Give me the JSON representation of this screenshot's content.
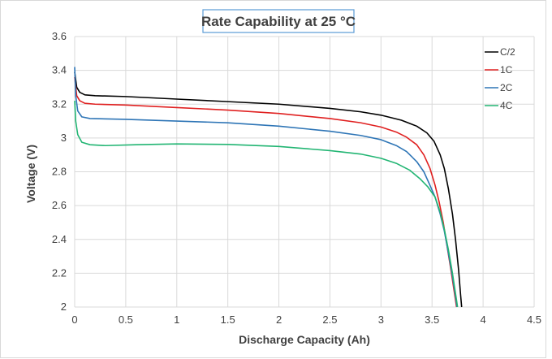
{
  "chart_data": {
    "type": "line",
    "title": "Rate Capability at 25 °C",
    "xlabel": "Discharge Capacity (Ah)",
    "ylabel": "Voltage (V)",
    "xlim": [
      0,
      4.5
    ],
    "ylim": [
      2,
      3.6
    ],
    "xticks": [
      0,
      0.5,
      1,
      1.5,
      2,
      2.5,
      3,
      3.5,
      4,
      4.5
    ],
    "xtick_labels": [
      "0",
      "0.5",
      "1",
      "1.5",
      "2",
      "2.5",
      "3",
      "3.5",
      "4",
      "4.5"
    ],
    "yticks": [
      2,
      2.2,
      2.4,
      2.6,
      2.8,
      3,
      3.2,
      3.4,
      3.6
    ],
    "ytick_labels": [
      "2",
      "2.2",
      "2.4",
      "2.6",
      "2.8",
      "3",
      "3.2",
      "3.4",
      "3.6"
    ],
    "grid": true,
    "legend_position": "top-right",
    "series": [
      {
        "name": "C/2",
        "color": "#000000",
        "points": [
          [
            0,
            3.39
          ],
          [
            0.02,
            3.3
          ],
          [
            0.05,
            3.27
          ],
          [
            0.1,
            3.255
          ],
          [
            0.2,
            3.25
          ],
          [
            0.5,
            3.245
          ],
          [
            1,
            3.23
          ],
          [
            1.5,
            3.215
          ],
          [
            2,
            3.2
          ],
          [
            2.5,
            3.175
          ],
          [
            2.8,
            3.155
          ],
          [
            3,
            3.135
          ],
          [
            3.2,
            3.105
          ],
          [
            3.35,
            3.07
          ],
          [
            3.45,
            3.03
          ],
          [
            3.52,
            2.98
          ],
          [
            3.58,
            2.9
          ],
          [
            3.62,
            2.82
          ],
          [
            3.66,
            2.7
          ],
          [
            3.7,
            2.55
          ],
          [
            3.73,
            2.4
          ],
          [
            3.76,
            2.22
          ],
          [
            3.78,
            2.07
          ],
          [
            3.79,
            2.0
          ]
        ]
      },
      {
        "name": "1C",
        "color": "#e02020",
        "points": [
          [
            0,
            3.36
          ],
          [
            0.02,
            3.25
          ],
          [
            0.05,
            3.22
          ],
          [
            0.1,
            3.205
          ],
          [
            0.2,
            3.2
          ],
          [
            0.5,
            3.195
          ],
          [
            1,
            3.18
          ],
          [
            1.5,
            3.165
          ],
          [
            2,
            3.145
          ],
          [
            2.5,
            3.115
          ],
          [
            2.8,
            3.09
          ],
          [
            3,
            3.065
          ],
          [
            3.15,
            3.035
          ],
          [
            3.25,
            3.005
          ],
          [
            3.35,
            2.96
          ],
          [
            3.42,
            2.9
          ],
          [
            3.48,
            2.82
          ],
          [
            3.53,
            2.72
          ],
          [
            3.57,
            2.62
          ],
          [
            3.61,
            2.5
          ],
          [
            3.65,
            2.35
          ],
          [
            3.69,
            2.2
          ],
          [
            3.72,
            2.08
          ],
          [
            3.74,
            2.0
          ]
        ]
      },
      {
        "name": "2C",
        "color": "#2e75b6",
        "points": [
          [
            0,
            3.42
          ],
          [
            0.01,
            3.25
          ],
          [
            0.03,
            3.16
          ],
          [
            0.07,
            3.125
          ],
          [
            0.15,
            3.115
          ],
          [
            0.5,
            3.11
          ],
          [
            1,
            3.1
          ],
          [
            1.5,
            3.09
          ],
          [
            2,
            3.07
          ],
          [
            2.5,
            3.04
          ],
          [
            2.8,
            3.015
          ],
          [
            3,
            2.99
          ],
          [
            3.15,
            2.955
          ],
          [
            3.25,
            2.92
          ],
          [
            3.35,
            2.86
          ],
          [
            3.42,
            2.8
          ],
          [
            3.48,
            2.72
          ],
          [
            3.53,
            2.65
          ],
          [
            3.58,
            2.55
          ],
          [
            3.62,
            2.45
          ],
          [
            3.66,
            2.32
          ],
          [
            3.7,
            2.18
          ],
          [
            3.73,
            2.06
          ],
          [
            3.745,
            2.0
          ]
        ]
      },
      {
        "name": "4C",
        "color": "#22b573",
        "points": [
          [
            0,
            3.22
          ],
          [
            0.01,
            3.1
          ],
          [
            0.03,
            3.02
          ],
          [
            0.07,
            2.975
          ],
          [
            0.15,
            2.96
          ],
          [
            0.3,
            2.955
          ],
          [
            0.6,
            2.96
          ],
          [
            1,
            2.965
          ],
          [
            1.5,
            2.962
          ],
          [
            2,
            2.95
          ],
          [
            2.5,
            2.925
          ],
          [
            2.8,
            2.905
          ],
          [
            3,
            2.88
          ],
          [
            3.15,
            2.85
          ],
          [
            3.28,
            2.81
          ],
          [
            3.38,
            2.76
          ],
          [
            3.46,
            2.71
          ],
          [
            3.53,
            2.65
          ],
          [
            3.58,
            2.56
          ],
          [
            3.62,
            2.46
          ],
          [
            3.66,
            2.34
          ],
          [
            3.7,
            2.2
          ],
          [
            3.73,
            2.08
          ],
          [
            3.75,
            2.0
          ]
        ]
      }
    ]
  }
}
